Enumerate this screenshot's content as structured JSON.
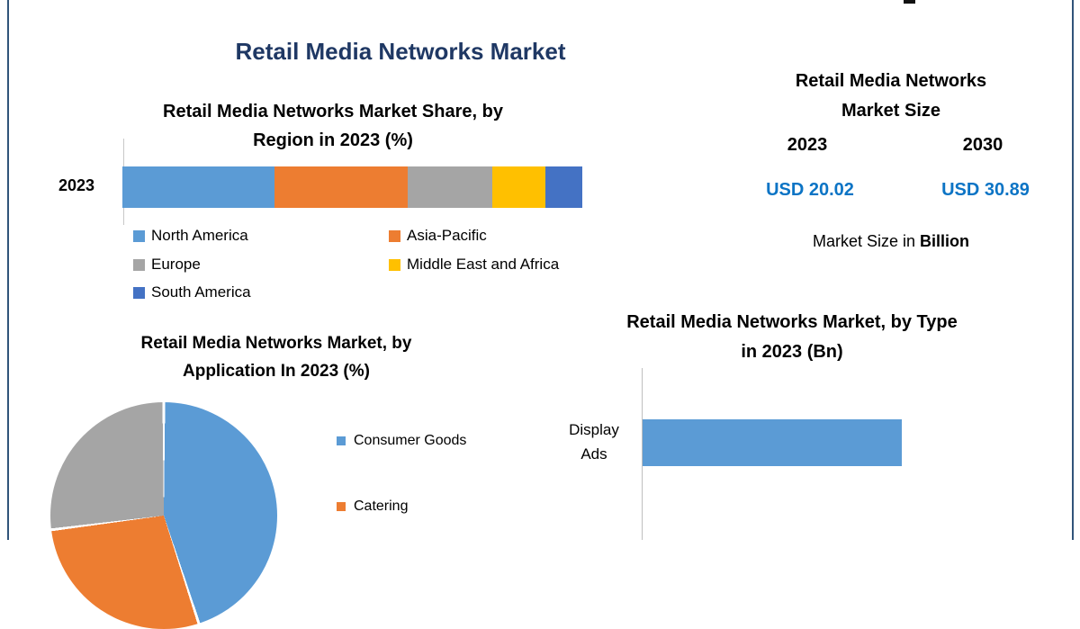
{
  "header": {
    "title": "Retail Media Networks Market"
  },
  "colors": {
    "navy_title": "#1F3864",
    "series_blue": "#5B9BD5",
    "series_orange": "#ED7D31",
    "series_gray": "#A5A5A5",
    "series_yellow": "#FFC000",
    "series_dark_blue": "#4472C4",
    "usd_value_blue": "#0C74C5",
    "frame_border": "#31547A",
    "axis_line": "#C8C8C8"
  },
  "region_chart": {
    "title_line1": "Retail Media Networks Market Share, by",
    "title_line2": "Region in 2023 (%)",
    "row_label": "2023",
    "legend": [
      {
        "label": "North America",
        "color": "#5B9BD5"
      },
      {
        "label": "Asia-Pacific",
        "color": "#ED7D31"
      },
      {
        "label": "Europe",
        "color": "#A5A5A5"
      },
      {
        "label": "Middle East and Africa",
        "color": "#FFC000"
      },
      {
        "label": "South America",
        "color": "#4472C4"
      }
    ]
  },
  "market_size_panel": {
    "title_line1": "Retail Media Networks",
    "title_line2": "Market Size",
    "year_left": "2023",
    "year_right": "2030",
    "value_left": "USD 20.02",
    "value_right": "USD 30.89",
    "caption_text": "Market Size in",
    "caption_bold": "Billion"
  },
  "application_chart": {
    "title_line1": "Retail Media Networks Market, by",
    "title_line2": "Application In 2023 (%)",
    "legend": [
      {
        "label": "Consumer Goods",
        "color": "#5B9BD5"
      },
      {
        "label": "Catering",
        "color": "#ED7D31"
      }
    ]
  },
  "type_chart": {
    "title_line1": "Retail Media Networks Market, by Type",
    "title_line2": "in 2023 (Bn)",
    "category_line1": "Display",
    "category_line2": "Ads"
  },
  "chart_data": [
    {
      "type": "bar",
      "subtype": "stacked-horizontal",
      "title": "Retail Media Networks Market Share, by Region in 2023 (%)",
      "categories": [
        "2023"
      ],
      "unit": "%",
      "series": [
        {
          "name": "North America",
          "values": [
            33
          ],
          "color": "#5B9BD5"
        },
        {
          "name": "Asia-Pacific",
          "values": [
            29
          ],
          "color": "#ED7D31"
        },
        {
          "name": "Europe",
          "values": [
            18.5
          ],
          "color": "#A5A5A5"
        },
        {
          "name": "Middle East and Africa",
          "values": [
            11.5
          ],
          "color": "#FFC000"
        },
        {
          "name": "South America",
          "values": [
            8
          ],
          "color": "#4472C4"
        }
      ],
      "legend_position": "bottom",
      "value_labels_shown": false
    },
    {
      "type": "table",
      "title": "Retail Media Networks Market Size",
      "columns": [
        "2023",
        "2030"
      ],
      "rows": [
        [
          "USD 20.02",
          "USD 30.89"
        ]
      ],
      "caption": "Market Size in Billion"
    },
    {
      "type": "pie",
      "title": "Retail Media Networks Market, by Application In 2023 (%)",
      "start_angle_deg": 0,
      "slices": [
        {
          "label": "Consumer Goods",
          "value": 45,
          "color": "#5B9BD5"
        },
        {
          "label": "Catering",
          "value": 28,
          "color": "#ED7D31"
        },
        {
          "label": "",
          "value": 27,
          "color": "#A5A5A5"
        }
      ],
      "legend_position": "right",
      "clipped_at_bottom": true
    },
    {
      "type": "bar",
      "subtype": "horizontal",
      "title": "Retail Media Networks Market, by Type in 2023 (Bn)",
      "categories": [
        "Display Ads"
      ],
      "bar_color": "#5B9BD5",
      "bar_fraction": 0.605,
      "value_axis_labels_shown": false,
      "clipped_at_bottom": true
    }
  ]
}
